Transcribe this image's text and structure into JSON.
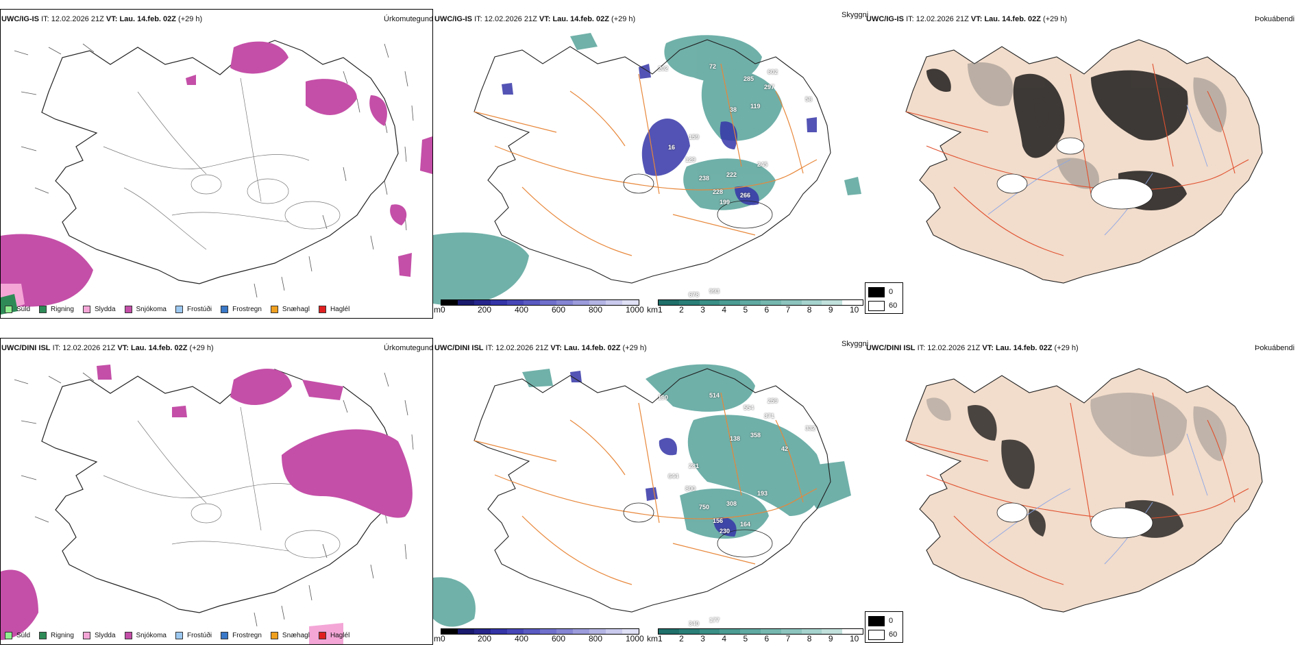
{
  "rows": [
    {
      "id": "igis",
      "model": "UWC/IG-IS",
      "it_label": "IT:",
      "it_value": "12.02.2026 21Z",
      "vt_label": "VT:",
      "vt_value": "Lau. 14.feb. 02Z",
      "lead": "(+29 h)",
      "panels": {
        "precip_title": "Úrkomutegund",
        "vis_title": "Skyggni",
        "cloud_title": "Þokuábendi"
      },
      "vis_labels": [
        "202",
        "72",
        "285",
        "602",
        "297",
        "58",
        "38",
        "119",
        "159",
        "16",
        "129",
        "245",
        "238",
        "222",
        "228",
        "199",
        "266",
        "993",
        "678"
      ]
    },
    {
      "id": "dini",
      "model": "UWC/DINI ISL",
      "it_label": "IT:",
      "it_value": "12.02.2026 21Z",
      "vt_label": "VT:",
      "vt_value": "Lau. 14.feb. 02Z",
      "lead": "(+29 h)",
      "panels": {
        "precip_title": "Úrkomutegund",
        "vis_title": "Skyggni",
        "cloud_title": "Þokuábendi"
      },
      "vis_labels": [
        "190",
        "514",
        "554",
        "259",
        "371",
        "332",
        "138",
        "358",
        "281",
        "644",
        "800",
        "193",
        "750",
        "308",
        "156",
        "230",
        "164",
        "177",
        "340",
        "42"
      ]
    }
  ],
  "precip_legend": [
    {
      "label": "Súld",
      "color": "#90ee90"
    },
    {
      "label": "Rigning",
      "color": "#2e8b57"
    },
    {
      "label": "Slydda",
      "color": "#f4a6d7"
    },
    {
      "label": "Snjókoma",
      "color": "#c44fa8"
    },
    {
      "label": "Frostúði",
      "color": "#9cc8f0"
    },
    {
      "label": "Frostregn",
      "color": "#3a78c8"
    },
    {
      "label": "Snæhagl",
      "color": "#f0a020"
    },
    {
      "label": "Haglél",
      "color": "#e02020"
    }
  ],
  "height_bar": {
    "unit": "m",
    "ticks": [
      "0",
      "200",
      "400",
      "600",
      "800",
      "1000"
    ],
    "colors": [
      "#000000",
      "#1a1a6e",
      "#26268c",
      "#3535a8",
      "#4747b8",
      "#5a5ac2",
      "#7070cc",
      "#8585d4",
      "#9c9cdc",
      "#b4b4e4",
      "#cacaee",
      "#e0e0f6"
    ]
  },
  "vis_bar": {
    "unit": "km",
    "ticks": [
      "1",
      "2",
      "3",
      "4",
      "5",
      "6",
      "7",
      "8",
      "9",
      "10"
    ],
    "colors": [
      "#1f6f6a",
      "#2a7f78",
      "#3a8f86",
      "#4c9d94",
      "#60aaa2",
      "#76b8b0",
      "#8dc5be",
      "#a6d3cd",
      "#c1e1dc",
      "#ffffff"
    ]
  },
  "cover_legend": {
    "items": [
      {
        "label": "0",
        "color": "#000000"
      },
      {
        "label": "60",
        "color": "#ffffff"
      }
    ]
  },
  "colors": {
    "snow": "#c44fa8",
    "rain": "#2e8b57",
    "sleet": "#f4a6d7",
    "teal": "#4c9d94",
    "land": "#f2dccb",
    "road": "#e8873a",
    "road_red": "#e0502e",
    "river": "#8aa6e8"
  }
}
